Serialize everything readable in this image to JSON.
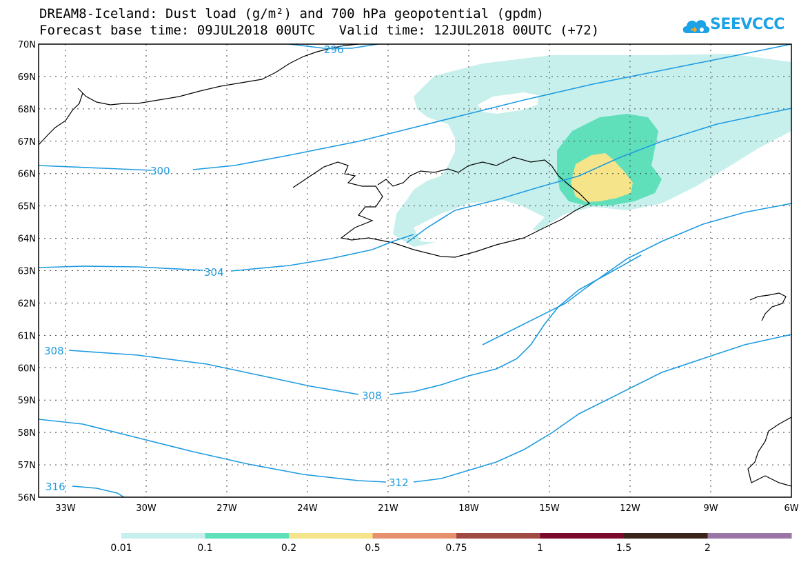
{
  "title": {
    "line1": "DREAM8-Iceland: Dust load (g/m²) and 700 hPa geopotential (gpdm)",
    "line2": "Forecast base time: 09JUL2018 00UTC   Valid time: 12JUL2018 00UTC (+72)"
  },
  "logo": {
    "text": "SEEVCCC",
    "icon": "cloud-icon"
  },
  "map": {
    "lon_labels": [
      "33W",
      "30W",
      "27W",
      "24W",
      "21W",
      "18W",
      "15W",
      "12W",
      "9W",
      "6W"
    ],
    "lat_labels": [
      "70N",
      "69N",
      "68N",
      "67N",
      "66N",
      "65N",
      "64N",
      "63N",
      "62N",
      "61N",
      "60N",
      "59N",
      "58N",
      "57N",
      "56N"
    ],
    "contour_color": "#1e9be0",
    "contour_labels": [
      "296",
      "300",
      "304",
      "308",
      "308",
      "312",
      "316"
    ],
    "dust_colors": {
      "0.01": "#c7f0ec",
      "0.1": "#5fe0bb",
      "0.2": "#f5e48a"
    }
  },
  "colorbar": {
    "labels": [
      "0.01",
      "0.1",
      "0.2",
      "0.5",
      "0.75",
      "1",
      "1.5",
      "2"
    ],
    "colors": [
      "#c7f0ec",
      "#5fe0bb",
      "#f5e48a",
      "#e7906e",
      "#a04a44",
      "#7b0b2c",
      "#3a241b",
      "#9a76a6"
    ]
  }
}
